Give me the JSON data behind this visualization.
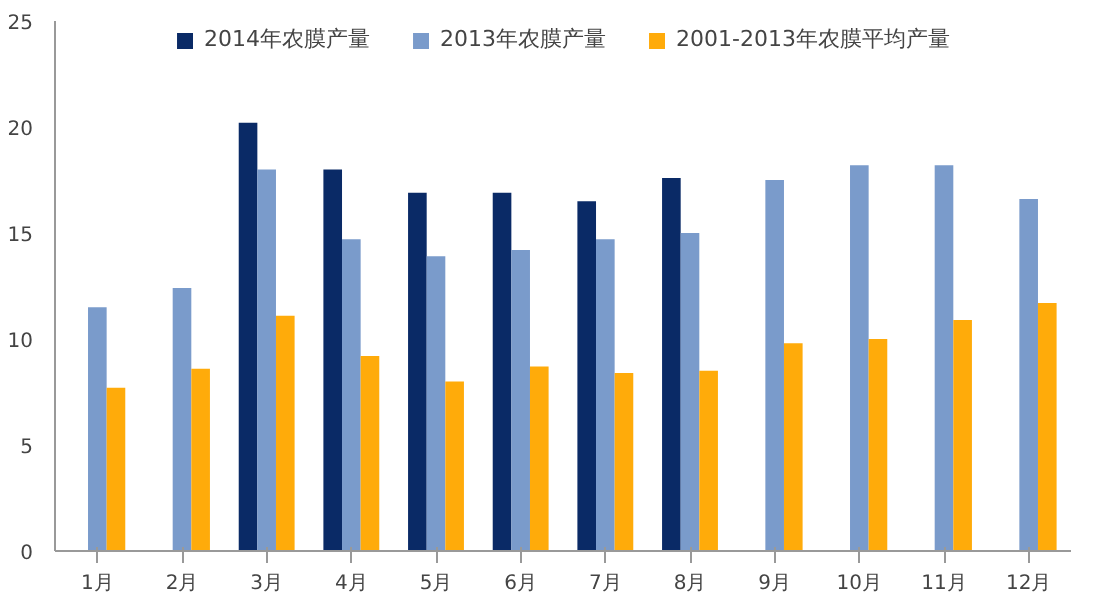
{
  "chart_data": {
    "type": "bar",
    "categories": [
      "1月",
      "2月",
      "3月",
      "4月",
      "5月",
      "6月",
      "7月",
      "8月",
      "9月",
      "10月",
      "11月",
      "12月"
    ],
    "series": [
      {
        "name": "2014年农膜产量",
        "color": "#0a2a66",
        "values": [
          null,
          null,
          20.2,
          18.0,
          16.9,
          16.9,
          16.5,
          17.6,
          null,
          null,
          null,
          null
        ]
      },
      {
        "name": "2013年农膜产量",
        "color": "#7a9bcb",
        "values": [
          11.5,
          12.4,
          18.0,
          14.7,
          13.9,
          14.2,
          14.7,
          15.0,
          17.5,
          18.2,
          18.2,
          16.6
        ]
      },
      {
        "name": "2001-2013年农膜平均产量",
        "color": "#ffab0a",
        "values": [
          7.7,
          8.6,
          11.1,
          9.2,
          8.0,
          8.7,
          8.4,
          8.5,
          9.8,
          10.0,
          10.9,
          11.7
        ]
      }
    ],
    "ylim": [
      0,
      25
    ],
    "yticks": [
      0,
      5,
      10,
      15,
      20,
      25
    ],
    "grid": false,
    "legend": "top"
  }
}
